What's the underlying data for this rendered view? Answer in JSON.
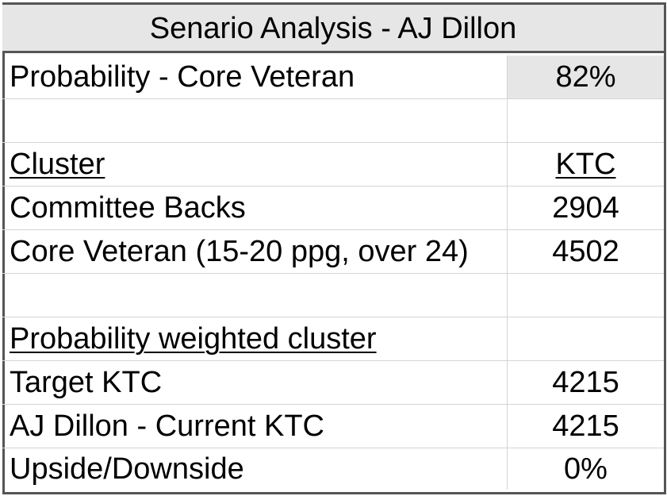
{
  "title": "Senario Analysis - AJ Dillon",
  "rows": [
    {
      "label": "Probability - Core Veteran",
      "value": "82%"
    },
    {
      "label": "",
      "value": ""
    },
    {
      "label": "Cluster",
      "value": "KTC"
    },
    {
      "label": "Committee Backs",
      "value": "2904"
    },
    {
      "label": "Core Veteran (15-20 ppg, over 24)",
      "value": "4502"
    },
    {
      "label": "",
      "value": ""
    },
    {
      "label": "Probability weighted cluster",
      "value": ""
    },
    {
      "label": "Target KTC",
      "value": "4215"
    },
    {
      "label": "AJ Dillon - Current KTC",
      "value": "4215"
    },
    {
      "label": "Upside/Downside",
      "value": "0%"
    }
  ],
  "colors": {
    "header_fill": "#e6e6e6",
    "frame": "#555555",
    "gridline": "#d4d4d4"
  }
}
